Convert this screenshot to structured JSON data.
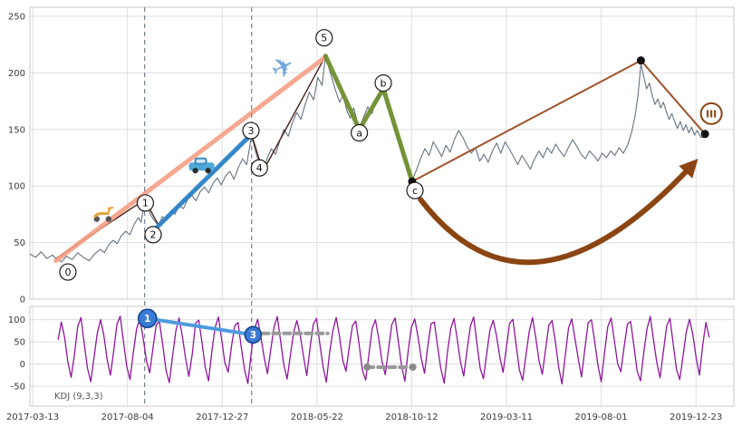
{
  "colors": {
    "price_line": "#66727f",
    "kdj_line": "#8E169B",
    "grid": "#dfdfdf",
    "panel_border": "#c8c8c8",
    "dashed_vline": "#708090",
    "salmon": "#F59F84",
    "blue": "#2F86C9",
    "green": "#6E8F2E",
    "brown": "#8B4513",
    "sienna": "#A0522D",
    "marker_black": "#111111",
    "tick_text": "#3a3a3a"
  },
  "chart_data": [
    {
      "type": "line",
      "panel": "price",
      "title": "",
      "xlabel": "",
      "ylabel": "",
      "ylim": [
        0,
        258
      ],
      "yticks": [
        0,
        50,
        100,
        150,
        200,
        250
      ],
      "x_tick_labels": [
        "2017-03-13",
        "2017-08-04",
        "2017-12-27",
        "2018-05-22",
        "2018-10-12",
        "2019-03-11",
        "2019-08-01",
        "2019-12-23"
      ],
      "price_series": {
        "name": "price",
        "color": "#66727f",
        "points": [
          [
            0,
            40
          ],
          [
            0.8,
            37
          ],
          [
            1.6,
            42
          ],
          [
            2.4,
            36
          ],
          [
            3.2,
            39
          ],
          [
            3.7,
            36
          ],
          [
            4.5,
            33
          ],
          [
            5.2,
            38
          ],
          [
            6,
            35
          ],
          [
            6.8,
            41
          ],
          [
            7.6,
            37
          ],
          [
            8.4,
            34
          ],
          [
            9.2,
            40
          ],
          [
            10,
            44
          ],
          [
            10.6,
            41
          ],
          [
            11.2,
            48
          ],
          [
            11.8,
            52
          ],
          [
            12.4,
            49
          ],
          [
            13,
            56
          ],
          [
            13.6,
            60
          ],
          [
            14.2,
            57
          ],
          [
            14.8,
            66
          ],
          [
            15.4,
            72
          ],
          [
            15.8,
            68
          ],
          [
            16.3,
            88
          ],
          [
            16.8,
            80
          ],
          [
            17.2,
            74
          ],
          [
            17.6,
            70
          ],
          [
            18.3,
            65
          ],
          [
            18.8,
            73
          ],
          [
            19.4,
            70
          ],
          [
            20,
            78
          ],
          [
            20.6,
            75
          ],
          [
            21.2,
            83
          ],
          [
            21.8,
            80
          ],
          [
            22.4,
            88
          ],
          [
            23,
            92
          ],
          [
            23.6,
            87
          ],
          [
            24.2,
            95
          ],
          [
            24.8,
            99
          ],
          [
            25.4,
            94
          ],
          [
            26,
            102
          ],
          [
            26.6,
            107
          ],
          [
            27.2,
            101
          ],
          [
            27.8,
            109
          ],
          [
            28.4,
            113
          ],
          [
            29,
            106
          ],
          [
            29.6,
            116
          ],
          [
            30.2,
            124
          ],
          [
            30.8,
            119
          ],
          [
            31.5,
            145
          ],
          [
            32,
            132
          ],
          [
            32.5,
            121
          ],
          [
            33.1,
            113
          ],
          [
            33.7,
            124
          ],
          [
            34.3,
            133
          ],
          [
            34.9,
            128
          ],
          [
            35.5,
            140
          ],
          [
            36.1,
            150
          ],
          [
            36.7,
            144
          ],
          [
            37.3,
            156
          ],
          [
            37.9,
            165
          ],
          [
            38.5,
            159
          ],
          [
            39.1,
            172
          ],
          [
            39.7,
            183
          ],
          [
            40.3,
            176
          ],
          [
            40.9,
            196
          ],
          [
            41.5,
            189
          ],
          [
            42,
            215
          ],
          [
            42.5,
            204
          ],
          [
            43,
            193
          ],
          [
            43.5,
            183
          ],
          [
            44,
            174
          ],
          [
            44.5,
            181
          ],
          [
            45,
            167
          ],
          [
            45.5,
            160
          ],
          [
            46,
            169
          ],
          [
            46.8,
            150
          ],
          [
            47.4,
            161
          ],
          [
            48,
            170
          ],
          [
            48.6,
            164
          ],
          [
            49.2,
            177
          ],
          [
            50,
            185
          ],
          [
            50.6,
            174
          ],
          [
            51.2,
            163
          ],
          [
            51.8,
            152
          ],
          [
            52.4,
            139
          ],
          [
            53,
            127
          ],
          [
            53.6,
            116
          ],
          [
            54.3,
            105
          ],
          [
            54.9,
            114
          ],
          [
            55.5,
            124
          ],
          [
            56.1,
            133
          ],
          [
            56.7,
            127
          ],
          [
            57.3,
            139
          ],
          [
            57.9,
            133
          ],
          [
            58.5,
            126
          ],
          [
            59.1,
            136
          ],
          [
            59.7,
            130
          ],
          [
            60.3,
            141
          ],
          [
            60.9,
            149
          ],
          [
            61.5,
            143
          ],
          [
            62.1,
            135
          ],
          [
            62.7,
            129
          ],
          [
            63.3,
            134
          ],
          [
            63.9,
            122
          ],
          [
            64.5,
            128
          ],
          [
            65.1,
            121
          ],
          [
            65.7,
            131
          ],
          [
            66.3,
            138
          ],
          [
            66.9,
            129
          ],
          [
            67.5,
            139
          ],
          [
            68.1,
            133
          ],
          [
            68.7,
            126
          ],
          [
            69.3,
            119
          ],
          [
            69.9,
            127
          ],
          [
            70.5,
            121
          ],
          [
            71.1,
            115
          ],
          [
            71.7,
            124
          ],
          [
            72.3,
            131
          ],
          [
            72.9,
            125
          ],
          [
            73.5,
            134
          ],
          [
            74.1,
            129
          ],
          [
            74.7,
            137
          ],
          [
            75.3,
            131
          ],
          [
            75.9,
            126
          ],
          [
            76.5,
            134
          ],
          [
            77.1,
            141
          ],
          [
            77.7,
            135
          ],
          [
            78.3,
            128
          ],
          [
            78.9,
            124
          ],
          [
            79.5,
            131
          ],
          [
            80.1,
            127
          ],
          [
            80.7,
            122
          ],
          [
            81.3,
            129
          ],
          [
            81.9,
            125
          ],
          [
            82.5,
            131
          ],
          [
            83.1,
            127
          ],
          [
            83.7,
            134
          ],
          [
            84.3,
            129
          ],
          [
            84.9,
            136
          ],
          [
            85.5,
            148
          ],
          [
            86,
            163
          ],
          [
            86.4,
            181
          ],
          [
            86.8,
            208
          ],
          [
            87.2,
            197
          ],
          [
            87.6,
            186
          ],
          [
            88,
            191
          ],
          [
            88.4,
            180
          ],
          [
            88.8,
            172
          ],
          [
            89.2,
            177
          ],
          [
            89.6,
            169
          ],
          [
            90,
            174
          ],
          [
            90.4,
            166
          ],
          [
            90.8,
            159
          ],
          [
            91.2,
            164
          ],
          [
            91.6,
            157
          ],
          [
            92,
            151
          ],
          [
            92.4,
            157
          ],
          [
            92.8,
            149
          ],
          [
            93.2,
            154
          ],
          [
            93.6,
            147
          ],
          [
            94,
            152
          ],
          [
            94.4,
            145
          ],
          [
            94.8,
            149
          ],
          [
            95.3,
            143
          ],
          [
            95.9,
            143
          ]
        ]
      },
      "overlays": [
        {
          "name": "impulse-zigzag-line",
          "type": "polyline",
          "color": "#4a2018",
          "width": 1.4,
          "points": [
            [
              3.7,
              36
            ],
            [
              16.3,
              88
            ],
            [
              18.3,
              65
            ],
            [
              31.5,
              145
            ],
            [
              33.1,
              113
            ],
            [
              42,
              215
            ]
          ]
        },
        {
          "name": "wave0-5-trendline",
          "type": "polyline",
          "color": "#F59F84",
          "width": 5,
          "opacity": 0.9,
          "points": [
            [
              3.7,
              34
            ],
            [
              42,
              214
            ]
          ]
        },
        {
          "name": "wave2-3-speedline",
          "type": "polyline",
          "color": "#2F86C9",
          "width": 5,
          "opacity": 0.95,
          "points": [
            [
              17.8,
              62
            ],
            [
              31.5,
              146
            ]
          ]
        },
        {
          "name": "wave5-c-zigzag",
          "type": "polyline",
          "color": "#6E8F2E",
          "width": 5,
          "opacity": 0.95,
          "points": [
            [
              42,
              215
            ],
            [
              46.8,
              150
            ],
            [
              50.2,
              186
            ],
            [
              54.3,
              104
            ]
          ]
        },
        {
          "name": "c-peak-end-line",
          "type": "polyline",
          "color": "#A0522D",
          "width": 2,
          "points": [
            [
              54.3,
              104
            ],
            [
              86.8,
              211
            ],
            [
              95.9,
              146
            ]
          ]
        },
        {
          "name": "projection-curve-arrow",
          "type": "curve",
          "color": "#8B4513",
          "width": 6,
          "points": [
            [
              55.5,
              88
            ],
            [
              71,
              -37
            ],
            [
              94.3,
              120
            ]
          ]
        }
      ],
      "markers": [
        {
          "x": 54.3,
          "v": 104
        },
        {
          "x": 86.8,
          "v": 211
        },
        {
          "x": 95.9,
          "v": 146
        }
      ],
      "wave_labels": [
        {
          "text": "0",
          "x": 5.4,
          "v": 24
        },
        {
          "text": "1",
          "x": 16.4,
          "v": 85
        },
        {
          "text": "2",
          "x": 17.5,
          "v": 57
        },
        {
          "text": "3",
          "x": 31.4,
          "v": 149
        },
        {
          "text": "4",
          "x": 32.6,
          "v": 116
        },
        {
          "text": "5",
          "x": 41.8,
          "v": 231
        },
        {
          "text": "a",
          "x": 46.8,
          "v": 147
        },
        {
          "text": "b",
          "x": 50.2,
          "v": 191
        },
        {
          "text": "c",
          "x": 54.7,
          "v": 96
        }
      ],
      "roman_label": {
        "text": "III",
        "x": 96.8,
        "v": 164,
        "color": "#8B4513"
      },
      "vlines": [
        16.3,
        31.5
      ],
      "vehicles": [
        {
          "name": "scooter-icon",
          "x": 10.4,
          "v": 70
        },
        {
          "name": "car-icon",
          "x": 24.4,
          "v": 116
        },
        {
          "name": "airplane-icon",
          "x": 36.0,
          "v": 204
        }
      ]
    },
    {
      "type": "line",
      "panel": "kdj",
      "label": "KDJ (9,3,3)",
      "ylim": [
        -95,
        130
      ],
      "yticks": [
        -50,
        0,
        50,
        100
      ],
      "series": {
        "name": "kdj",
        "color": "#8E169B",
        "values": [
          55,
          95,
          60,
          5,
          -30,
          20,
          85,
          105,
          45,
          -10,
          -40,
          15,
          70,
          100,
          65,
          10,
          -25,
          30,
          90,
          108,
          50,
          -5,
          -35,
          25,
          80,
          102,
          58,
          8,
          -20,
          35,
          88,
          96,
          42,
          -15,
          -42,
          18,
          75,
          104,
          62,
          12,
          -28,
          22,
          92,
          99,
          48,
          -8,
          -38,
          28,
          82,
          106,
          55,
          2,
          -18,
          40,
          86,
          94,
          38,
          -12,
          -44,
          24,
          78,
          101,
          60,
          15,
          -22,
          32,
          84,
          107,
          52,
          -2,
          -34,
          20,
          72,
          98,
          66,
          18,
          -26,
          36,
          90,
          103,
          46,
          -6,
          -41,
          26,
          76,
          105,
          63,
          9,
          -16,
          38,
          87,
          97,
          44,
          -14,
          -36,
          22,
          80,
          100,
          58,
          6,
          -24,
          34,
          89,
          104,
          50,
          -4,
          -39,
          29,
          83,
          102,
          61,
          13,
          -21,
          41,
          91,
          95,
          40,
          -11,
          -43,
          27,
          79,
          103,
          56,
          4,
          -27,
          31,
          85,
          106,
          47,
          -9,
          -33,
          23,
          77,
          99,
          64,
          16,
          -19,
          37,
          92,
          101,
          43,
          -13,
          -37,
          21,
          74,
          105,
          59,
          7,
          -23,
          33,
          88,
          98,
          49,
          -7,
          -45,
          19,
          81,
          102,
          57,
          11,
          -29,
          35,
          93,
          100,
          51,
          -3,
          -40,
          24,
          84,
          104,
          54,
          1,
          -17,
          39,
          90,
          96,
          41,
          -16,
          -38,
          26,
          80,
          107,
          53,
          3,
          -31,
          28,
          86,
          103,
          45,
          -12,
          -35,
          17,
          73,
          101,
          67,
          14,
          -25,
          42,
          94,
          60
        ]
      },
      "overlays": [
        {
          "name": "kdj-divergence-blue-line",
          "type": "polyline",
          "color": "#4D9BE0",
          "width": 4,
          "points": [
            [
              16.7,
              103
            ],
            [
              31.7,
              66
            ]
          ]
        },
        {
          "name": "kdj-gray-dash-a",
          "type": "polyline",
          "color": "#999999",
          "width": 4,
          "dash": "7 5",
          "points": [
            [
              33,
              69
            ],
            [
              42.3,
              69
            ]
          ]
        },
        {
          "name": "kdj-gray-dash-b",
          "type": "polyline",
          "color": "#999999",
          "width": 4,
          "dash": "7 5",
          "dots": true,
          "points": [
            [
              47.9,
              -7
            ],
            [
              54.4,
              -7
            ]
          ]
        }
      ],
      "circle_labels": [
        {
          "text": "1",
          "x": 16.7,
          "v": 103,
          "r": 10
        },
        {
          "text": "3",
          "x": 31.7,
          "v": 66,
          "r": 9
        }
      ],
      "vlines": [
        16.3,
        31.5
      ]
    }
  ]
}
